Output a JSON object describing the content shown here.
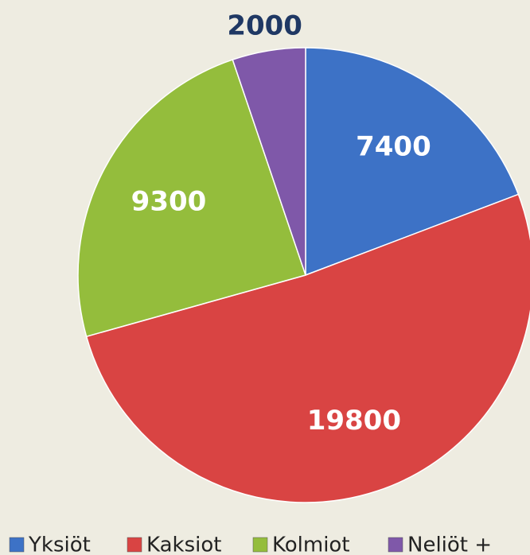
{
  "chart_data": {
    "type": "pie",
    "categories": [
      "Yksiöt",
      "Kaksiot",
      "Kolmiot",
      "Neliöt +"
    ],
    "values": [
      7400,
      19800,
      9300,
      2000
    ],
    "colors": [
      "#3d72c6",
      "#d94443",
      "#94bd3c",
      "#7f58a9"
    ]
  }
}
